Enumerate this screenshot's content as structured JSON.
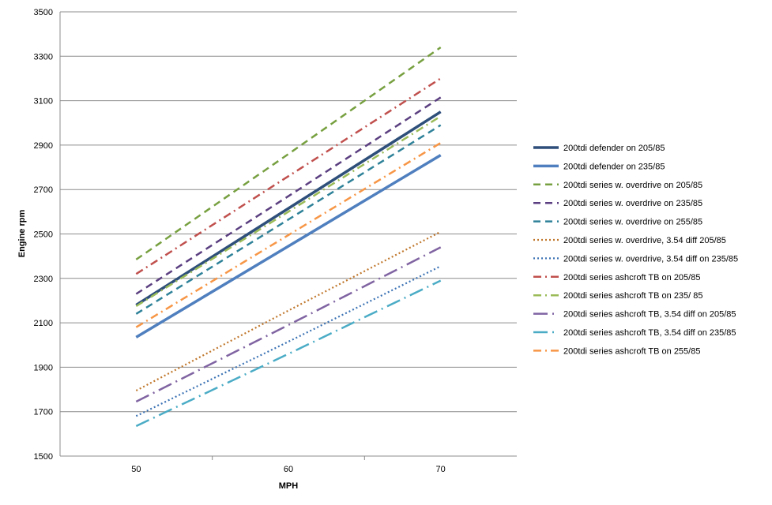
{
  "chart_data": {
    "type": "line",
    "xlabel": "MPH",
    "ylabel": "Engine rpm",
    "x": [
      50,
      60,
      70
    ],
    "xlim": [
      45,
      75
    ],
    "ylim": [
      1500,
      3500
    ],
    "yticks": [
      1500,
      1700,
      1900,
      2100,
      2300,
      2500,
      2700,
      2900,
      3100,
      3300,
      3500
    ],
    "grid": "horizontal",
    "legend_position": "right",
    "series": [
      {
        "name": "200tdi defender on 205/85",
        "values": [
          2180,
          2615,
          3050
        ],
        "color": "#2e4f7a",
        "style": "solid-thick"
      },
      {
        "name": "200tdi defender on 235/85",
        "values": [
          2035,
          2445,
          2855
        ],
        "color": "#4f7fbe",
        "style": "solid-thick"
      },
      {
        "name": "200tdi series w. overdrive on 205/85",
        "values": [
          2385,
          2860,
          3340
        ],
        "color": "#77a040",
        "style": "dash"
      },
      {
        "name": "200tdi series w. overdrive on 235/85",
        "values": [
          2230,
          2670,
          3115
        ],
        "color": "#5b3f80",
        "style": "dash"
      },
      {
        "name": "200tdi series w. overdrive on 255/85",
        "values": [
          2140,
          2565,
          2990
        ],
        "color": "#2f8299",
        "style": "dash"
      },
      {
        "name": "200tdi series w. overdrive, 3.54 diff 205/85",
        "values": [
          1795,
          2155,
          2510
        ],
        "color": "#c0772c",
        "style": "dot"
      },
      {
        "name": "200tdi series w. overdrive, 3.54 diff on 235/85",
        "values": [
          1680,
          2015,
          2355
        ],
        "color": "#3c73b4",
        "style": "dot"
      },
      {
        "name": "200tdi series ashcroft TB on 205/85",
        "values": [
          2320,
          2760,
          3200
        ],
        "color": "#c0504d",
        "style": "dashdot"
      },
      {
        "name": "200tdi series ashcroft TB on 235/ 85",
        "values": [
          2175,
          2600,
          3030
        ],
        "color": "#9bbb59",
        "style": "dashdot"
      },
      {
        "name": "200tdi series ashcroft TB, 3.54 diff on 205/85",
        "values": [
          1745,
          2090,
          2440
        ],
        "color": "#8064a2",
        "style": "longdashdot"
      },
      {
        "name": "200tdi series ashcroft TB, 3.54 diff on 235/85",
        "values": [
          1635,
          1960,
          2290
        ],
        "color": "#4bacc6",
        "style": "longdashdot"
      },
      {
        "name": "200tdi series ashcroft TB on 255/85",
        "values": [
          2080,
          2495,
          2910
        ],
        "color": "#f79646",
        "style": "dashdot"
      }
    ]
  }
}
